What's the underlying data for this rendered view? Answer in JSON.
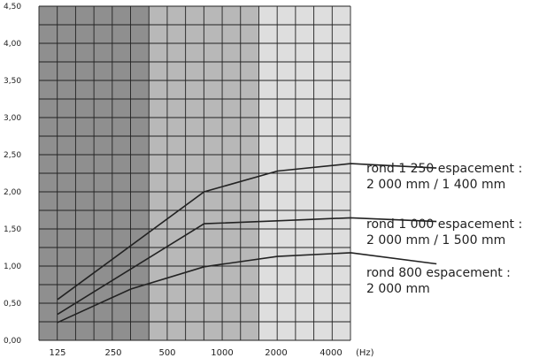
{
  "chart_data": {
    "type": "line",
    "title": "",
    "xlabel": "",
    "ylabel": "",
    "x_unit": "(Hz)",
    "x_ticks": [
      "125",
      "250",
      "500",
      "1000",
      "2000",
      "4000"
    ],
    "y_ticks": [
      "0,00",
      "0,50",
      "1,00",
      "1,50",
      "2,00",
      "2,50",
      "3,00",
      "3,50",
      "4,00",
      "4,50"
    ],
    "ylim": [
      0,
      4.5
    ],
    "grid": true,
    "x_scale": "octave",
    "colors": {
      "band_dark": "#8f8f8f",
      "band_mid": "#b8b8b8",
      "band_light": "#dedede",
      "grid": "#222222",
      "line": "#222222"
    },
    "series": [
      {
        "name_lines": [
          "rond 1 250 espacement :",
          "2 000 mm / 1 400 mm"
        ],
        "x": [
          125,
          500,
          1000,
          2000,
          4500
        ],
        "values": [
          0.55,
          2.0,
          2.28,
          2.38,
          2.32
        ]
      },
      {
        "name_lines": [
          "rond 1 000 espacement :",
          "2 000 mm / 1 500 mm"
        ],
        "x": [
          125,
          500,
          1000,
          2000,
          4500
        ],
        "values": [
          0.35,
          1.57,
          1.61,
          1.65,
          1.6
        ]
      },
      {
        "name_lines": [
          "rond 800 espacement :",
          "2 000 mm"
        ],
        "x": [
          125,
          250,
          500,
          1000,
          2000,
          4500
        ],
        "values": [
          0.24,
          0.69,
          0.99,
          1.13,
          1.18,
          1.03
        ]
      }
    ]
  }
}
